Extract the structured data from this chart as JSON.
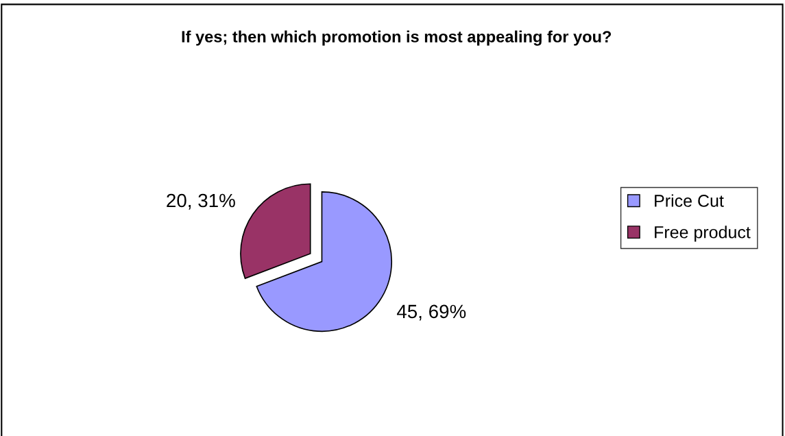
{
  "chart_data": {
    "type": "pie",
    "title": "If yes; then which promotion is most appealing for you?",
    "categories": [
      "Price Cut",
      "Free product"
    ],
    "values": [
      45,
      20
    ],
    "colors": [
      "#9999ff",
      "#993366"
    ],
    "value_labels": [
      "45, 69%",
      "20, 31%"
    ],
    "legend": "right"
  }
}
